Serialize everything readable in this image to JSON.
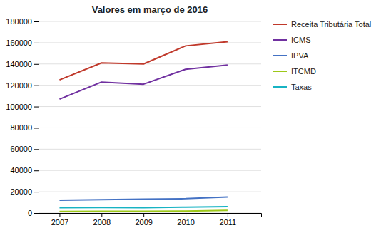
{
  "chart_data": {
    "type": "line",
    "title": "Valores em março de 2016",
    "x": [
      2007,
      2008,
      2009,
      2010,
      2011
    ],
    "series": [
      {
        "name": "Receita Tributária Total",
        "color": "#c0392b",
        "values": [
          125000,
          141000,
          140000,
          157000,
          161000
        ]
      },
      {
        "name": "ICMS",
        "color": "#7030a0",
        "values": [
          107000,
          123000,
          121000,
          135000,
          139000
        ]
      },
      {
        "name": "IPVA",
        "color": "#4472c4",
        "values": [
          12000,
          12500,
          13000,
          13500,
          15000
        ]
      },
      {
        "name": "ITCMD",
        "color": "#9dc819",
        "values": [
          1500,
          1700,
          1600,
          1800,
          2500
        ]
      },
      {
        "name": "Taxas",
        "color": "#17b3c3",
        "values": [
          5000,
          5200,
          5100,
          5500,
          6000
        ]
      }
    ],
    "xlim": [
      2006.5,
      2011.8
    ],
    "xticks": [
      2007,
      2008,
      2009,
      2010,
      2011
    ],
    "ylim": [
      0,
      180000
    ],
    "yticks": [
      0,
      20000,
      40000,
      60000,
      80000,
      100000,
      120000,
      140000,
      160000,
      180000
    ],
    "grid": true,
    "legend": "right"
  }
}
